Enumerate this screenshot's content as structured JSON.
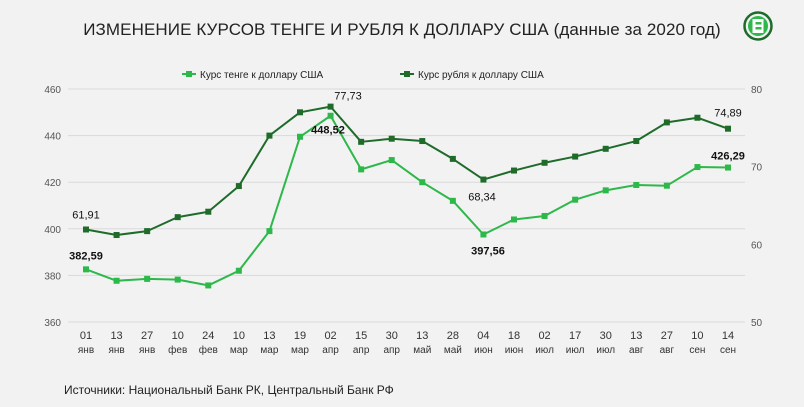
{
  "title": "ИЗМЕНЕНИЕ КУРСОВ ТЕНГЕ И РУБЛЯ К ДОЛЛАРУ США (данные за 2020 год)",
  "source": "Источники: Национальный Банк РК, Центральный Банк РФ",
  "colors": {
    "tenge": "#2db84a",
    "ruble": "#1e6b2a",
    "grid": "#d9d9d9",
    "axis_text": "#555555"
  },
  "chart_data": {
    "type": "line",
    "grid": true,
    "legend_position": "top-center",
    "categories": [
      [
        "01",
        "янв"
      ],
      [
        "13",
        "янв"
      ],
      [
        "27",
        "янв"
      ],
      [
        "10",
        "фев"
      ],
      [
        "24",
        "фев"
      ],
      [
        "10",
        "мар"
      ],
      [
        "13",
        "мар"
      ],
      [
        "19",
        "мар"
      ],
      [
        "02",
        "апр"
      ],
      [
        "15",
        "апр"
      ],
      [
        "30",
        "апр"
      ],
      [
        "13",
        "май"
      ],
      [
        "28",
        "май"
      ],
      [
        "04",
        "июн"
      ],
      [
        "18",
        "июн"
      ],
      [
        "02",
        "июл"
      ],
      [
        "17",
        "июл"
      ],
      [
        "30",
        "июл"
      ],
      [
        "13",
        "авг"
      ],
      [
        "27",
        "авг"
      ],
      [
        "10",
        "сен"
      ],
      [
        "14",
        "сен"
      ]
    ],
    "y_left": {
      "min": 360,
      "max": 460,
      "ticks": [
        360,
        380,
        400,
        420,
        440,
        460
      ]
    },
    "y_right": {
      "min": 50,
      "max": 80,
      "ticks": [
        50,
        60,
        70,
        80
      ]
    },
    "series": [
      {
        "name": "Курс тенге к доллару США",
        "axis": "left",
        "color": "#2db84a",
        "values": [
          382.59,
          377.7,
          378.5,
          378.2,
          375.7,
          382.0,
          399.0,
          439.5,
          448.52,
          425.5,
          429.5,
          420.0,
          412.0,
          397.56,
          404.0,
          405.5,
          412.5,
          416.5,
          418.8,
          418.5,
          426.5,
          426.29
        ],
        "labels": [
          {
            "index": 0,
            "text": "382,59"
          },
          {
            "index": 8,
            "text": "448,52"
          },
          {
            "index": 13,
            "text": "397,56"
          },
          {
            "index": 21,
            "text": "426,29"
          }
        ]
      },
      {
        "name": "Курс рубля к доллару США",
        "axis": "right",
        "color": "#1e6b2a",
        "values": [
          61.91,
          61.2,
          61.7,
          63.5,
          64.2,
          67.5,
          74.0,
          77.0,
          77.73,
          73.2,
          73.6,
          73.3,
          71.0,
          68.34,
          69.5,
          70.5,
          71.3,
          72.3,
          73.3,
          75.7,
          76.3,
          74.89
        ],
        "labels": [
          {
            "index": 0,
            "text": "61,91"
          },
          {
            "index": 8,
            "text": "77,73"
          },
          {
            "index": 13,
            "text": "68,34"
          },
          {
            "index": 21,
            "text": "74,89"
          }
        ]
      }
    ]
  }
}
